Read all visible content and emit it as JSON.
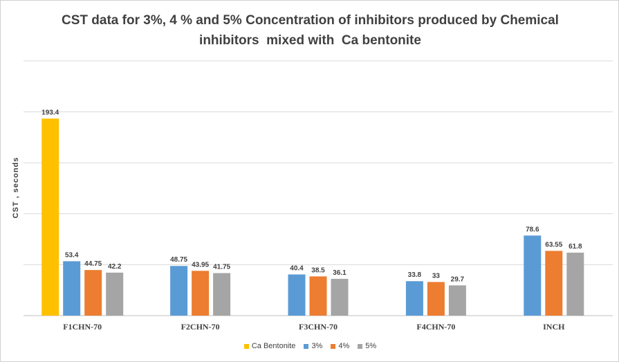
{
  "chart_data": {
    "type": "bar",
    "title_lines": [
      "CST data for 3%, 4 % and 5% Concentration of inhibitors produced by Chemical",
      "inhibitors  mixed with  Ca bentonite"
    ],
    "xlabel": "",
    "ylabel": "CST , seconds",
    "ylim": [
      0,
      250
    ],
    "yticks": [
      0,
      50,
      100,
      150,
      200,
      250
    ],
    "ytick_labels_shown": false,
    "grid": true,
    "legend_position": "bottom",
    "categories": [
      "F1CHN-70",
      "F2CHN-70",
      "F3CHN-70",
      "F4CHN-70",
      "INCH"
    ],
    "series": [
      {
        "name": "Ca Bentonite",
        "color": "#FFC000",
        "values": [
          193.4,
          null,
          null,
          null,
          null
        ],
        "labels": [
          "193.4",
          null,
          null,
          null,
          null
        ]
      },
      {
        "name": "3%",
        "color": "#5B9BD5",
        "values": [
          53.4,
          48.75,
          40.4,
          33.8,
          78.6
        ],
        "labels": [
          "53.4",
          "48.75",
          "40.4",
          "33.8",
          "78.6"
        ]
      },
      {
        "name": "4%",
        "color": "#ED7D31",
        "values": [
          44.75,
          43.95,
          38.5,
          33,
          63.55
        ],
        "labels": [
          "44.75",
          "43.95",
          "38.5",
          "33",
          "63.55"
        ]
      },
      {
        "name": "5%",
        "color": "#A5A5A5",
        "values": [
          42.2,
          41.75,
          36.1,
          29.7,
          61.8
        ],
        "labels": [
          "42.2",
          "41.75",
          "36.1",
          "29.7",
          "61.8"
        ]
      }
    ]
  }
}
